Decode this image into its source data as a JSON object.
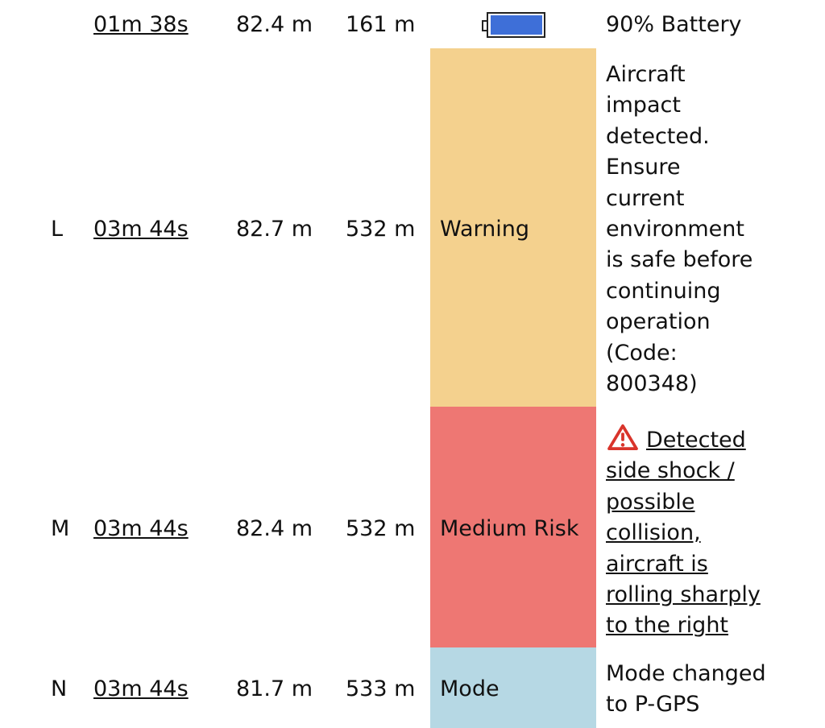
{
  "rows": [
    {
      "id": "",
      "time": "01m 38s",
      "altitude": "82.4 m",
      "distance": "161 m",
      "status_icon": "battery-icon",
      "battery_level": 0.9,
      "message": "90% Battery"
    },
    {
      "id": "L",
      "time": "03m 44s",
      "altitude": "82.7 m",
      "distance": "532 m",
      "status": "Warning",
      "status_color": "#F4D18E",
      "message_lines": [
        "Aircraft",
        "impact",
        "detected.",
        "Ensure",
        "current",
        "environment",
        "is safe before",
        "continuing",
        "operation",
        "(Code:",
        "800348)"
      ]
    },
    {
      "id": "M",
      "time": "03m 44s",
      "altitude": "82.4 m",
      "distance": "532 m",
      "status": "Medium Risk",
      "status_color": "#EE7773",
      "message_icon": "warning-triangle-icon",
      "message_lines": [
        "Detected",
        "side shock /",
        "possible",
        "collision,",
        "aircraft is",
        "rolling sharply",
        "to the right"
      ]
    },
    {
      "id": "N",
      "time": "03m 44s",
      "altitude": "81.7 m",
      "distance": "533 m",
      "status": "Mode",
      "status_color": "#B6D8E4",
      "message_lines": [
        "Mode changed",
        "to P-GPS"
      ]
    }
  ],
  "colors": {
    "battery_fill": "#3E6FD8",
    "warning_icon": "#D9342B"
  }
}
